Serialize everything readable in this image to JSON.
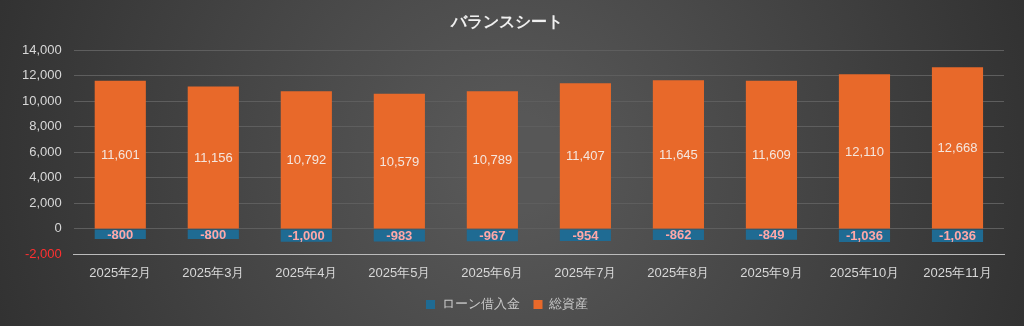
{
  "chart_data": {
    "type": "bar",
    "title": "バランスシート",
    "stacked": true,
    "categories": [
      "2025年2月",
      "2025年3月",
      "2025年4月",
      "2025年5月",
      "2025年6月",
      "2025年7月",
      "2025年8月",
      "2025年9月",
      "2025年10月",
      "2025年11月"
    ],
    "series": [
      {
        "name": "ローン借入金",
        "color": "#1f6b93",
        "values": [
          -800,
          -800,
          -1000,
          -983,
          -967,
          -954,
          -862,
          -849,
          -1036,
          -1036
        ],
        "value_labels": [
          "-800",
          "-800",
          "-1,000",
          "-983",
          "-967",
          "-954",
          "-862",
          "-849",
          "-1,036",
          "-1,036"
        ]
      },
      {
        "name": "総資産",
        "color": "#e8692a",
        "values": [
          11601,
          11156,
          10792,
          10579,
          10789,
          11407,
          11645,
          11609,
          12110,
          12668
        ],
        "value_labels": [
          "11,601",
          "11,156",
          "10,792",
          "10,579",
          "10,789",
          "11,407",
          "11,645",
          "11,609",
          "12,110",
          "12,668"
        ]
      }
    ],
    "ylim": [
      -2000,
      14000
    ],
    "yticks": [
      {
        "value": -2000,
        "label": "-2,000"
      },
      0,
      {
        "value": 2000,
        "label": "2,000"
      },
      {
        "value": 4000,
        "label": "4,000"
      },
      {
        "value": 6000,
        "label": "6,000"
      },
      {
        "value": 8000,
        "label": "8,000"
      },
      {
        "value": 10000,
        "label": "10,000"
      },
      {
        "value": 12000,
        "label": "12,000"
      },
      {
        "value": 14000,
        "label": "14,000"
      }
    ],
    "grid": "y",
    "legend": "bottom"
  }
}
